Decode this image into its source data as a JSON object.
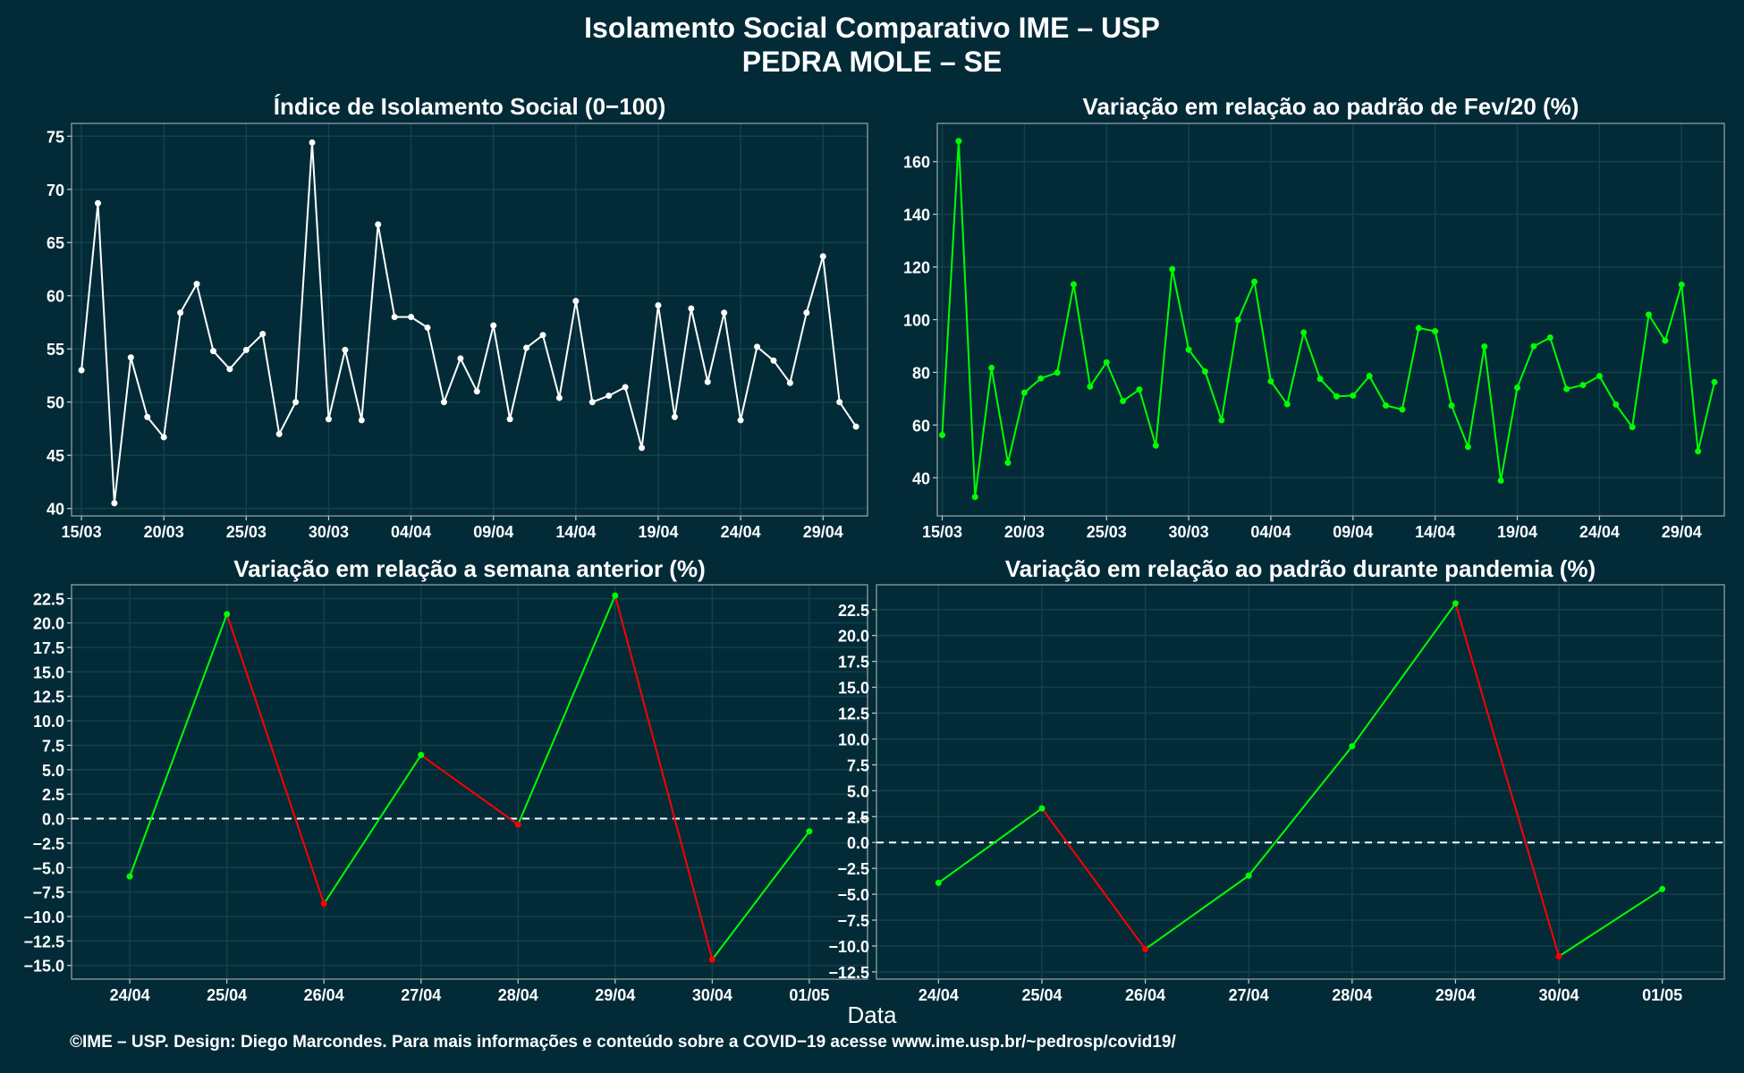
{
  "title_line1": "Isolamento Social Comparativo IME – USP",
  "title_line2": "PEDRA MOLE – SE",
  "xlabel": "Data",
  "footer": "©IME – USP. Design: Diego Marcondes. Para mais informações e conteúdo sobre a COVID−19 acesse www.ime.usp.br/~pedrosp/covid19/",
  "colors": {
    "background": "#022b37",
    "white_line": "#ffffff",
    "green_line": "#00ff00",
    "red_line": "#ff0000",
    "grid": "#12414c",
    "panel_border": "#9aa8ad"
  },
  "chart_data": [
    {
      "id": "isolation-index",
      "type": "line",
      "title": "Índice de Isolamento Social (0−100)",
      "x_labels": [
        "15/03",
        "20/03",
        "25/03",
        "30/03",
        "04/04",
        "09/04",
        "14/04",
        "19/04",
        "24/04",
        "29/04"
      ],
      "y_ticks": [
        "40",
        "45",
        "50",
        "55",
        "60",
        "65",
        "70",
        "75"
      ],
      "ylim": [
        39.3,
        76.2
      ],
      "xlim": [
        -0.6,
        47.7
      ],
      "color": "white",
      "values": [
        53.0,
        68.7,
        40.5,
        54.2,
        48.6,
        46.7,
        58.4,
        61.1,
        54.8,
        53.1,
        54.9,
        56.4,
        47.0,
        50.0,
        74.4,
        48.4,
        54.9,
        48.3,
        66.7,
        58.0,
        58.0,
        57.0,
        50.0,
        54.1,
        51.0,
        57.2,
        48.4,
        55.1,
        56.3,
        50.4,
        59.5,
        50.0,
        50.6,
        51.4,
        45.7,
        59.1,
        48.6,
        58.8,
        51.9,
        58.4,
        48.3,
        55.2,
        53.9,
        51.8,
        58.4,
        63.7,
        50.0,
        47.7
      ]
    },
    {
      "id": "variation-fev20",
      "type": "line",
      "title": "Variação em relação ao padrão de Fev/20 (%)",
      "x_labels": [
        "15/03",
        "20/03",
        "25/03",
        "30/03",
        "04/04",
        "09/04",
        "14/04",
        "19/04",
        "24/04",
        "29/04"
      ],
      "y_ticks": [
        "40",
        "60",
        "80",
        "100",
        "120",
        "140",
        "160"
      ],
      "ylim": [
        25.5,
        174.5
      ],
      "xlim": [
        -0.3,
        47.6
      ],
      "color": "green",
      "values": [
        56.2,
        167.8,
        32.7,
        81.7,
        45.7,
        72.3,
        77.7,
        79.9,
        113.4,
        74.6,
        83.8,
        69.1,
        73.5,
        52.2,
        119.2,
        88.6,
        80.3,
        61.8,
        99.9,
        114.4,
        76.6,
        67.9,
        95.1,
        77.5,
        70.9,
        71.2,
        78.6,
        67.4,
        65.9,
        96.8,
        95.6,
        67.4,
        51.7,
        89.8,
        38.9,
        74.2,
        89.9,
        93.2,
        73.7,
        75.2,
        78.6,
        67.8,
        59.2,
        101.9,
        92.0,
        113.3,
        50.0,
        76.3
      ]
    },
    {
      "id": "variation-previous-week",
      "type": "line",
      "title": "Variação em relação a semana anterior (%)",
      "categories": [
        "24/04",
        "25/04",
        "26/04",
        "27/04",
        "28/04",
        "29/04",
        "30/04",
        "01/05"
      ],
      "y_ticks": [
        "−15.0",
        "−12.5",
        "−10.0",
        "−7.5",
        "−5.0",
        "−2.5",
        "0.0",
        "2.5",
        "5.0",
        "7.5",
        "10.0",
        "12.5",
        "15.0",
        "17.5",
        "20.0",
        "22.5"
      ],
      "ylim": [
        -16.4,
        23.9
      ],
      "xlim": [
        -0.6,
        7.6
      ],
      "reference_line": 0,
      "rising_color": "green",
      "falling_color": "red",
      "values": [
        -5.9,
        20.9,
        -8.7,
        6.5,
        -0.6,
        22.8,
        -14.4,
        -1.3
      ]
    },
    {
      "id": "variation-pandemic",
      "type": "line",
      "title": "Variação em relação ao padrão durante pandemia (%)",
      "categories": [
        "24/04",
        "25/04",
        "26/04",
        "27/04",
        "28/04",
        "29/04",
        "30/04",
        "01/05"
      ],
      "y_ticks": [
        "−12.5",
        "−10.0",
        "−7.5",
        "−5.0",
        "−2.5",
        "0.0",
        "2.5",
        "5.0",
        "7.5",
        "10.0",
        "12.5",
        "15.0",
        "17.5",
        "20.0",
        "22.5"
      ],
      "ylim": [
        -13.2,
        24.9
      ],
      "xlim": [
        -0.6,
        7.6
      ],
      "reference_line": 0,
      "rising_color": "green",
      "falling_color": "red",
      "values": [
        -3.9,
        3.3,
        -10.3,
        -3.2,
        9.3,
        23.1,
        -11.0,
        -4.5
      ]
    }
  ]
}
